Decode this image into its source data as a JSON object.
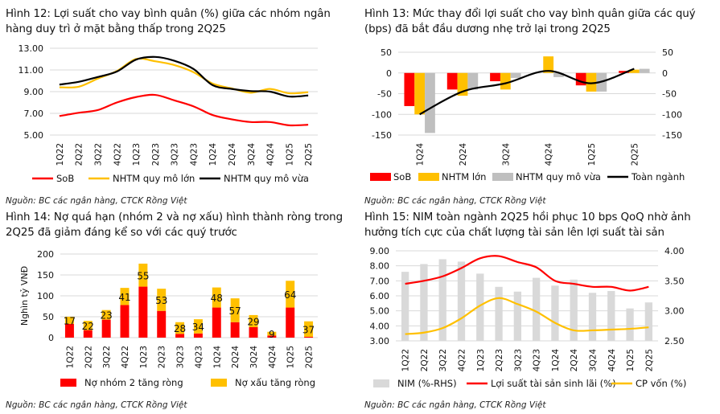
{
  "figures": [
    {
      "title": "Hình 12: Lợi suất cho vay bình quân (%) giữa các nhóm ngân hàng duy trì ở mặt bằng thấp trong 2Q25",
      "source": "Nguồn: BC các ngân hàng, CTCK Rồng Việt"
    },
    {
      "title": "Hình 13: Mức thay đổi lợi suất cho vay bình quân giữa các quý (bps) đã bắt đầu dương nhẹ trở lại trong 2Q25",
      "source": ""
    },
    {
      "title": "Hình 14: Nợ quá hạn (nhóm 2 và nợ xấu) hình thành ròng trong 2Q25 đã giảm đáng kể so với các quý trước",
      "source": "Nguồn: BC các ngân hàng, CTCK Rồng Việt"
    },
    {
      "title": "Hình 15: NIM toàn ngành 2Q25 hồi phục 10 bps QoQ nhờ ảnh hưởng tích cực của chất lượng tài sản lên lợi suất tài sản",
      "source": "Nguồn: BC các ngân hàng, CTCK Rồng Việt"
    }
  ],
  "sources": {
    "fig12": "Nguồn: BC các ngân hàng, CTCK Rồng Việt",
    "fig13": "Nguồn: BC các ngân hàng, CTCK Rồng Việt",
    "bottom_left": "Nguồn: BC các ngân hàng, CTCK Rồng Việt",
    "bottom_right": "Nguồn: BC các ngân hàng, CTCK Rồng Việt"
  },
  "chart_data": [
    {
      "type": "line",
      "categories": [
        "1Q22",
        "2Q22",
        "3Q22",
        "4Q22",
        "1Q23",
        "2Q23",
        "3Q23",
        "4Q23",
        "1Q24",
        "2Q24",
        "3Q24",
        "4Q24",
        "1Q25",
        "2Q25"
      ],
      "ylim": [
        5,
        13
      ],
      "yticks": [
        "5.00",
        "7.00",
        "9.00",
        "11.00",
        "13.00"
      ],
      "grid": true,
      "legend": "bottom",
      "series": [
        {
          "name": "SoB",
          "color": "#ff0000",
          "values": [
            6.75,
            7.05,
            7.3,
            8.0,
            8.5,
            8.7,
            8.2,
            7.65,
            6.85,
            6.45,
            6.2,
            6.2,
            5.9,
            5.95
          ]
        },
        {
          "name": "NHTM quy mô lớn",
          "color": "#ffc000",
          "values": [
            9.4,
            9.45,
            10.2,
            10.9,
            12.0,
            11.8,
            11.45,
            10.8,
            9.75,
            9.3,
            8.9,
            9.25,
            8.85,
            8.95
          ]
        },
        {
          "name": "NHTM quy mô vừa",
          "color": "#000000",
          "values": [
            9.65,
            9.9,
            10.35,
            10.85,
            11.95,
            12.2,
            11.85,
            11.1,
            9.6,
            9.25,
            9.05,
            9.0,
            8.55,
            8.65
          ]
        }
      ]
    },
    {
      "type": "bar",
      "categories": [
        "1Q24",
        "2Q24",
        "3Q24",
        "4Q24",
        "1Q25",
        "2Q25"
      ],
      "ylim": [
        -150,
        50
      ],
      "yticks": [
        "-150",
        "-100",
        "-50",
        "0",
        "50"
      ],
      "y2ticks": [
        "-150",
        "-100",
        "-50",
        "0",
        "50"
      ],
      "grid": true,
      "legend": "bottom",
      "series": [
        {
          "name": "SoB",
          "kind": "bar",
          "color": "#ff0000",
          "values": [
            -80,
            -40,
            -20,
            0,
            -30,
            5
          ]
        },
        {
          "name": "NHTM lớn",
          "kind": "bar",
          "color": "#ffc000",
          "values": [
            -100,
            -55,
            -40,
            40,
            -45,
            8
          ]
        },
        {
          "name": "NHTM quy mô vừa",
          "kind": "bar",
          "color": "#bfbfbf",
          "values": [
            -145,
            -40,
            -12,
            -10,
            -45,
            10
          ]
        },
        {
          "name": "Toàn ngành",
          "kind": "line",
          "color": "#000000",
          "values": [
            -100,
            -45,
            -25,
            5,
            -25,
            10
          ]
        }
      ]
    },
    {
      "type": "bar",
      "stacked": true,
      "categories": [
        "1Q22",
        "2Q22",
        "3Q22",
        "4Q22",
        "1Q23",
        "2Q23",
        "3Q23",
        "4Q23",
        "1Q24",
        "2Q24",
        "3Q24",
        "4Q24",
        "1Q25",
        "2Q25"
      ],
      "ylim": [
        0,
        200
      ],
      "yticks": [
        "0",
        "50",
        "100",
        "150",
        "200"
      ],
      "ylabel": "Nghìn tỷ VNĐ",
      "grid": true,
      "legend": "bottom",
      "series": [
        {
          "name": "Nợ nhóm 2 tăng ròng",
          "color": "#ff0000",
          "values": [
            33,
            18,
            43,
            78,
            122,
            64,
            9,
            10,
            72,
            37,
            25,
            5,
            72,
            2
          ]
        },
        {
          "name": "Nợ xấu tăng ròng",
          "color": "#ffc000",
          "values": [
            17,
            22,
            23,
            41,
            55,
            53,
            28,
            34,
            48,
            57,
            29,
            9,
            64,
            37
          ],
          "data_labels": [
            "17",
            "22",
            "23",
            "41",
            "55",
            "53",
            "28",
            "34",
            "48",
            "57",
            "29",
            "9",
            "64",
            "37"
          ]
        }
      ]
    },
    {
      "type": "bar",
      "categories": [
        "1Q22",
        "2Q22",
        "3Q22",
        "4Q22",
        "1Q23",
        "2Q23",
        "3Q23",
        "4Q23",
        "1Q24",
        "2Q24",
        "3Q24",
        "4Q24",
        "1Q25",
        "2Q25"
      ],
      "ylim": [
        3,
        9
      ],
      "y2lim": [
        2.5,
        4
      ],
      "yticks": [
        "3.00",
        "4.00",
        "5.00",
        "6.00",
        "7.00",
        "8.00",
        "9.00"
      ],
      "y2ticks": [
        "2.50",
        "3.00",
        "3.50",
        "4.00"
      ],
      "grid": true,
      "legend": "bottom",
      "series": [
        {
          "name": "NIM (%-RHS)",
          "kind": "bar",
          "axis": "right",
          "color": "#d9d9d9",
          "values": [
            3.65,
            3.78,
            3.86,
            3.82,
            3.62,
            3.4,
            3.32,
            3.55,
            3.42,
            3.52,
            3.3,
            3.33,
            3.04,
            3.14
          ]
        },
        {
          "name": "Lợi suất tài sản sinh lãi (%)",
          "kind": "line",
          "axis": "left",
          "color": "#ff0000",
          "values": [
            6.8,
            7.0,
            7.3,
            7.85,
            8.5,
            8.65,
            8.25,
            7.9,
            7.0,
            6.8,
            6.6,
            6.6,
            6.35,
            6.6
          ]
        },
        {
          "name": "CP vốn (%)",
          "kind": "line",
          "axis": "left",
          "color": "#ffc000",
          "values": [
            3.45,
            3.55,
            3.85,
            4.5,
            5.35,
            5.85,
            5.45,
            4.95,
            4.2,
            3.7,
            3.7,
            3.75,
            3.8,
            3.9
          ]
        }
      ]
    }
  ]
}
